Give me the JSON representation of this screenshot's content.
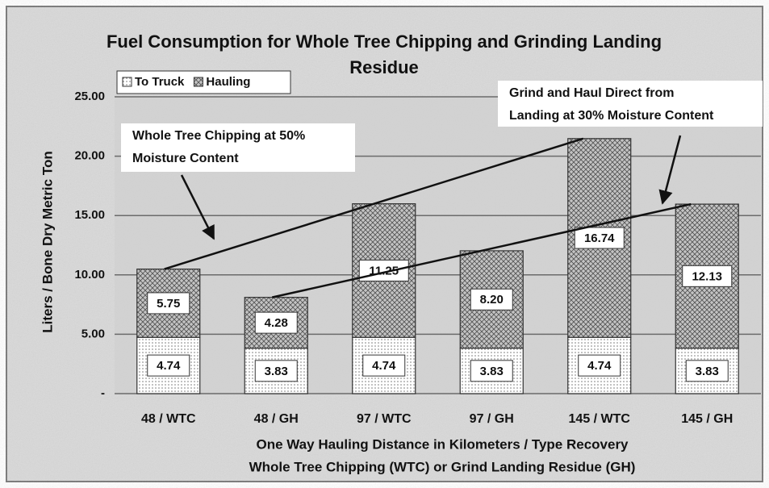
{
  "chart_data": {
    "type": "stacked_bar",
    "title": "Fuel Consumption for Whole Tree Chipping and Grinding Landing Residue",
    "y_label": "Liters / Bone Dry Metric Ton",
    "x_label": [
      "One Way Hauling Distance in Kilometers / Type Recovery",
      "Whole Tree Chipping (WTC) or Grind Landing Residue (GH)"
    ],
    "categories": [
      "48 / WTC",
      "48 / GH",
      "97 / WTC",
      "97 / GH",
      "145 / WTC",
      "145 / GH"
    ],
    "series": [
      {
        "name": "To Truck",
        "color": "#ffffff",
        "values": [
          4.74,
          3.83,
          4.74,
          3.83,
          4.74,
          3.83
        ],
        "value_labels": [
          "4.74",
          "3.83",
          "4.74",
          "3.83",
          "4.74",
          "3.83"
        ]
      },
      {
        "name": "Hauling",
        "color": "#bdbdbd",
        "values": [
          5.75,
          4.28,
          11.25,
          8.2,
          16.74,
          12.13
        ],
        "value_labels": [
          "5.75",
          "4.28",
          "11.25",
          "8.20",
          "16.74",
          "12.13"
        ]
      }
    ],
    "ylim": [
      0,
      25
    ],
    "yticks": [
      {
        "value": 0,
        "label": "-"
      },
      {
        "value": 5,
        "label": "5.00"
      },
      {
        "value": 10,
        "label": "10.00"
      },
      {
        "value": 15,
        "label": "15.00"
      },
      {
        "value": 20,
        "label": "20.00"
      },
      {
        "value": 25,
        "label": "25.00"
      }
    ],
    "grid": true,
    "legend": "top-left",
    "annotations": [
      {
        "text": [
          "Whole Tree Chipping at 50%",
          "Moisture Content"
        ]
      },
      {
        "text": [
          "Grind and Haul Direct from",
          "Landing at 30% Moisture Content"
        ]
      }
    ]
  }
}
